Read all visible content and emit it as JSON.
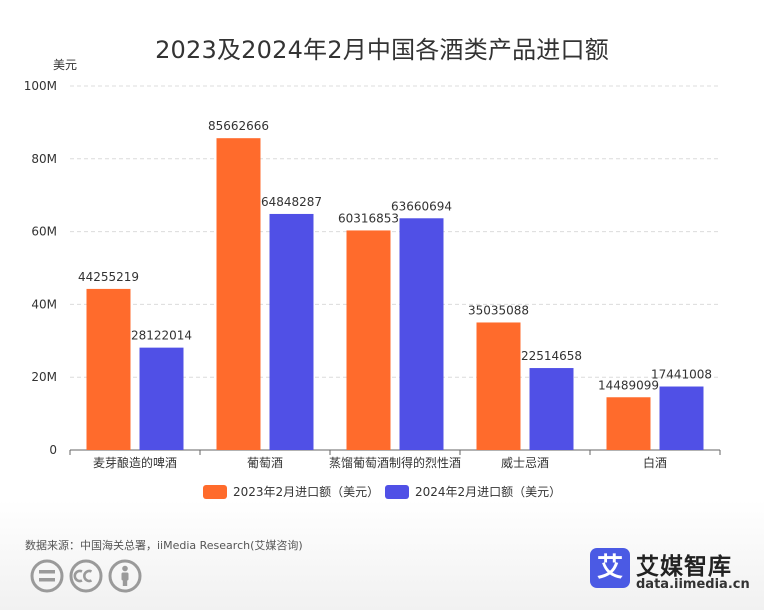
{
  "header": {
    "title": "2023及2024年2月中国各酒类产品进口额",
    "unit": "美元"
  },
  "chart_data": {
    "type": "bar",
    "categories": [
      "麦芽酿造的啤酒",
      "葡萄酒",
      "蒸馏葡萄酒制得的烈性酒",
      "威士忌酒",
      "白酒"
    ],
    "series": [
      {
        "name": "2023年2月进口额（美元）",
        "color": "#ff6b2c",
        "values": [
          44255219,
          85662666,
          60316853,
          35035088,
          14489099
        ]
      },
      {
        "name": "2024年2月进口额（美元）",
        "color": "#5050e6",
        "values": [
          28122014,
          64848287,
          63660694,
          22514658,
          17441008
        ]
      }
    ],
    "y_ticks": [
      {
        "value": 0,
        "label": "0"
      },
      {
        "value": 20000000,
        "label": "20M"
      },
      {
        "value": 40000000,
        "label": "40M"
      },
      {
        "value": 60000000,
        "label": "60M"
      },
      {
        "value": 80000000,
        "label": "80M"
      },
      {
        "value": 100000000,
        "label": "100M"
      }
    ],
    "ylim": [
      0,
      100000000
    ],
    "grid": true,
    "legend_position": "bottom-center"
  },
  "footer": {
    "source": "数据来源：中国海关总署，iiMedia Research(艾媒咨询)",
    "license_icons": [
      "equal-icon",
      "cc-icon",
      "person-icon"
    ],
    "brand_icon_char": "艾",
    "brand_name": "艾媒智库",
    "brand_url": "data.iimedia.cn"
  }
}
